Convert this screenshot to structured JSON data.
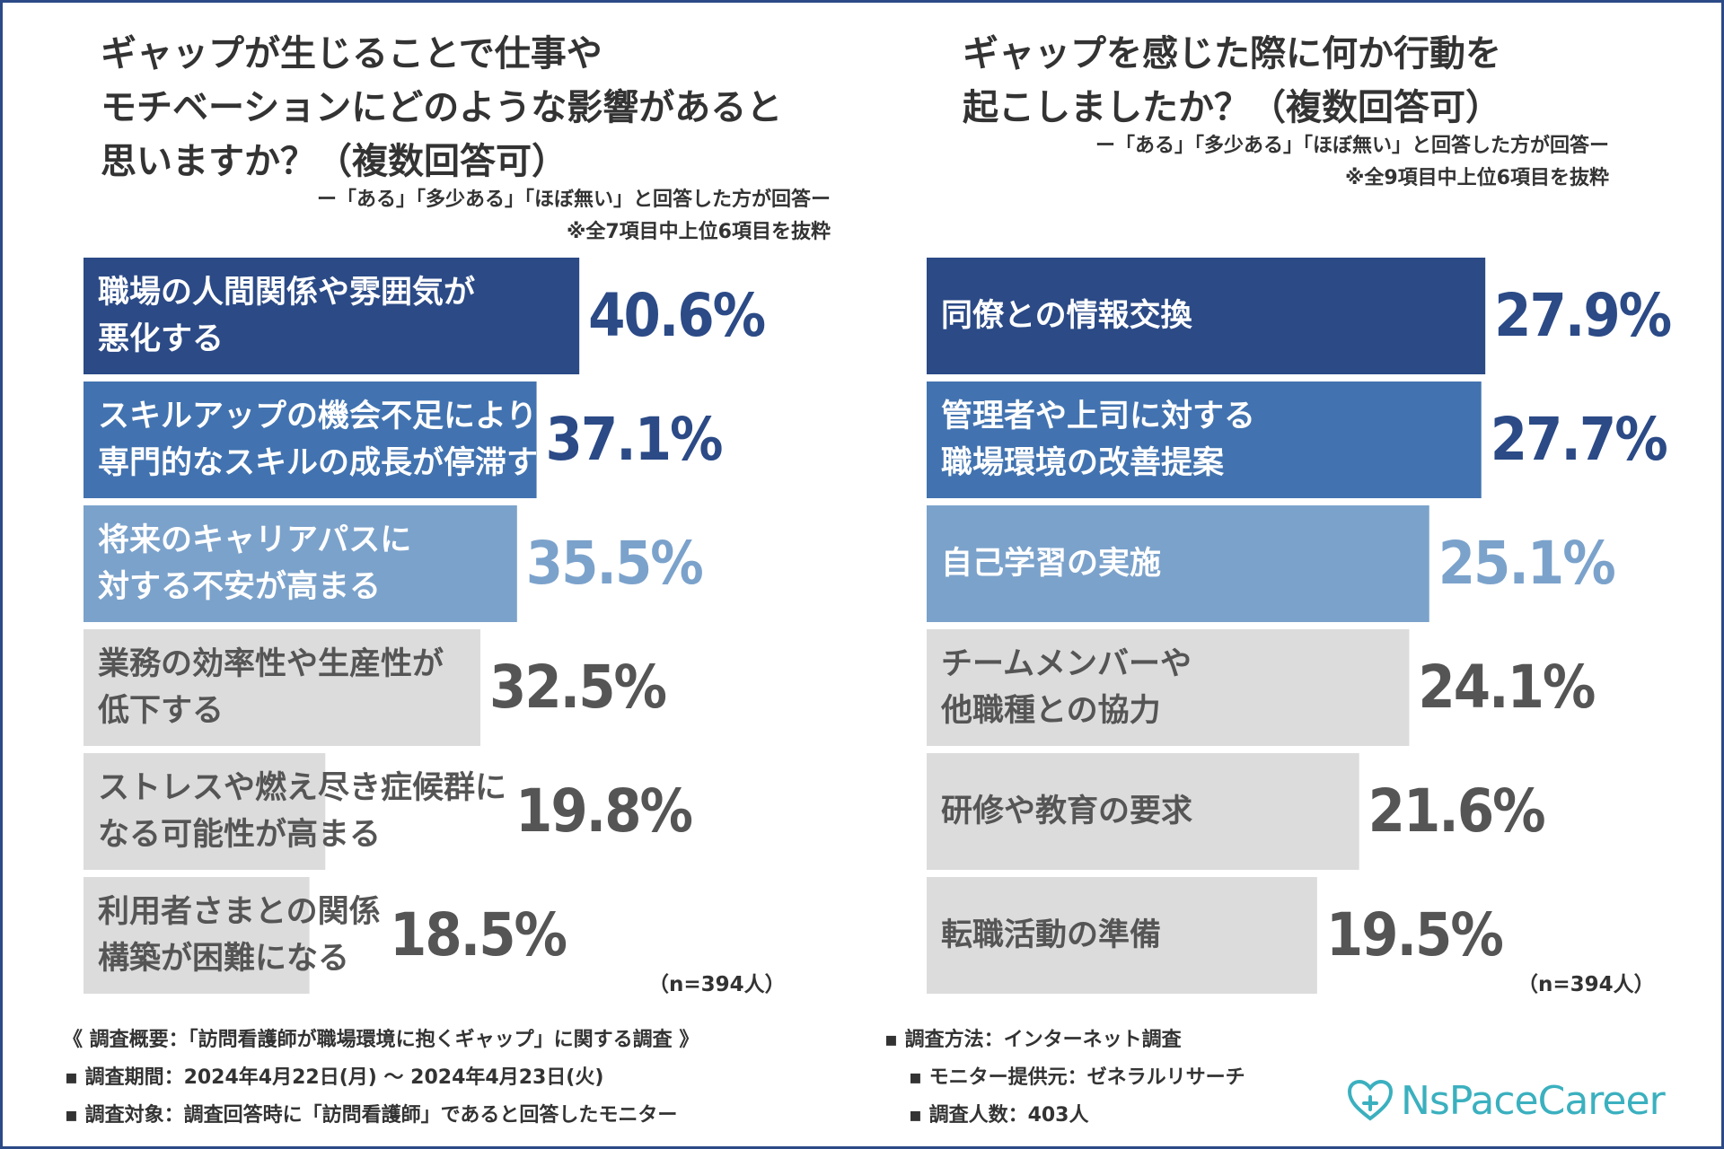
{
  "left": {
    "title_lines": [
      "ギャップが生じることで仕事や",
      "モチベーションにどのような影響があると",
      "思いますか？（複数回答可）"
    ],
    "subnote": "ー「ある」「多少ある」「ほぼ無い」と回答した方が回答ー",
    "excerpt_note": "※全7項目中上位6項目を抜粋",
    "n_note": "（n=394人）"
  },
  "right": {
    "title_lines": [
      "ギャップを感じた際に何か行動を",
      "起こしましたか？（複数回答可）"
    ],
    "subnote": "ー「ある」「多少ある」「ほぼ無い」と回答した方が回答ー",
    "excerpt_note": "※全9項目中上位6項目を抜粋",
    "n_note": "（n=394人）"
  },
  "colors": {
    "dark": "#2b4a86",
    "mid": "#4273b0",
    "light": "#7ba2cb",
    "gray": "#dcdcdc",
    "gray_text": "#555555",
    "frame": "#2b4a86",
    "logo": "#3bb0bf"
  },
  "chart_data": [
    {
      "type": "bar",
      "orientation": "horizontal",
      "title": "ギャップが生じることで仕事やモチベーションにどのような影響があると思いますか？（複数回答可）",
      "unit": "%",
      "categories": [
        "職場の人間関係や雰囲気が\n悪化する",
        "スキルアップの機会不足により\n専門的なスキルの成長が停滞する",
        "将来のキャリアパスに\n対する不安が高まる",
        "業務の効率性や生産性が\n低下する",
        "ストレスや燃え尽き症候群に\nなる可能性が高まる",
        "利用者さまとの関係\n構築が困難になる"
      ],
      "values": [
        40.6,
        37.1,
        35.5,
        32.5,
        19.8,
        18.5
      ],
      "value_labels": [
        "40.6%",
        "37.1%",
        "35.5%",
        "32.5%",
        "19.8%",
        "18.5%"
      ],
      "styles": [
        "dark",
        "mid",
        "light",
        "gray",
        "gray",
        "gray"
      ],
      "xlim": [
        0,
        50
      ]
    },
    {
      "type": "bar",
      "orientation": "horizontal",
      "title": "ギャップを感じた際に何か行動を起こしましたか？（複数回答可）",
      "unit": "%",
      "categories": [
        "同僚との情報交換",
        "管理者や上司に対する\n職場環境の改善提案",
        "自己学習の実施",
        "チームメンバーや\n他職種との協力",
        "研修や教育の要求",
        "転職活動の準備"
      ],
      "values": [
        27.9,
        27.7,
        25.1,
        24.1,
        21.6,
        19.5
      ],
      "value_labels": [
        "27.9%",
        "27.7%",
        "25.1%",
        "24.1%",
        "21.6%",
        "19.5%"
      ],
      "styles": [
        "dark",
        "mid",
        "light",
        "gray",
        "gray",
        "gray"
      ],
      "xlim": [
        0,
        30
      ]
    }
  ],
  "footer": {
    "overview": "《 調査概要：「訪問看護師が職場環境に抱くギャップ」に関する調査 》",
    "period": "▪ 調査期間：2024年4月22日(月) ～ 2024年4月23日(火)",
    "target": "▪ 調査対象：調査回答時に「訪問看護師」であると回答したモニター",
    "method": "▪ 調査方法：インターネット調査",
    "provider": "▪ モニター提供元：ゼネラルリサーチ",
    "respondents": "▪ 調査人数：403人"
  },
  "logo": {
    "text": "NsPaceCareer",
    "icon": "heart-plus-icon"
  }
}
